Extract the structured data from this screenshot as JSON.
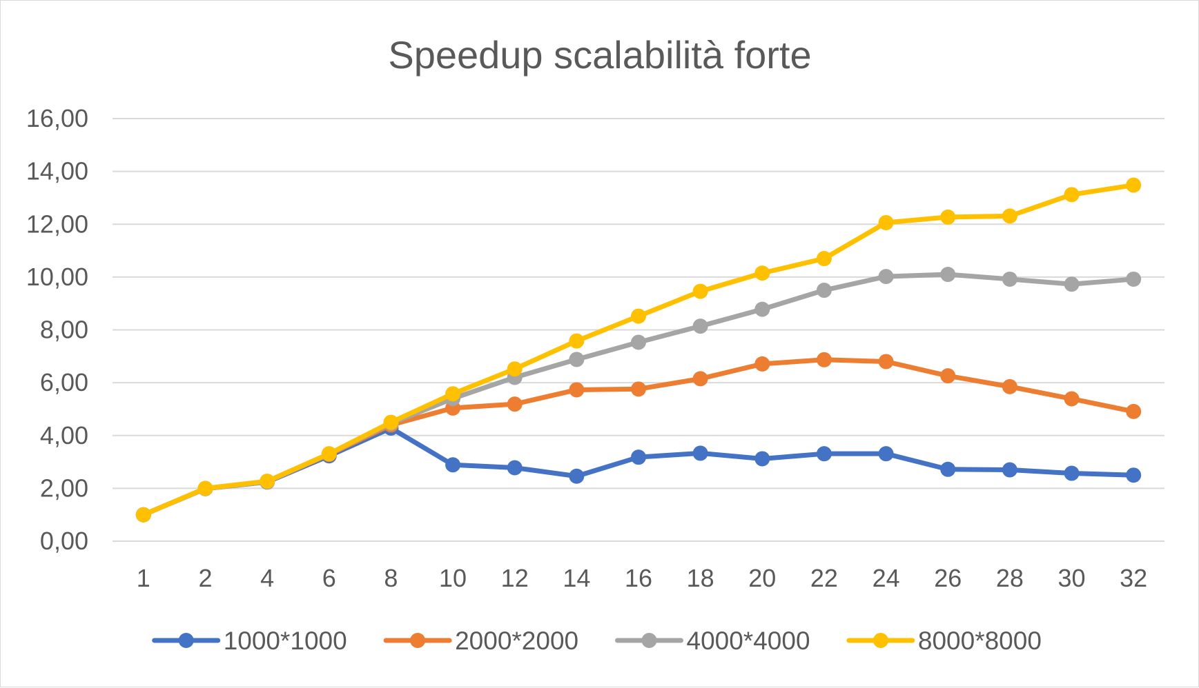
{
  "chart_data": {
    "type": "line",
    "title": "Speedup scalabilità forte",
    "xlabel": "",
    "ylabel": "",
    "categories": [
      "1",
      "2",
      "4",
      "6",
      "8",
      "10",
      "12",
      "14",
      "16",
      "18",
      "20",
      "22",
      "24",
      "26",
      "28",
      "30",
      "32"
    ],
    "ylim": [
      0,
      16
    ],
    "yticks": [
      0,
      2,
      4,
      6,
      8,
      10,
      12,
      14,
      16
    ],
    "ytick_labels": [
      "0,00",
      "2,00",
      "4,00",
      "6,00",
      "8,00",
      "10,00",
      "12,00",
      "14,00",
      "16,00"
    ],
    "grid": true,
    "legend_position": "bottom",
    "series": [
      {
        "name": "1000*1000",
        "color": "#4472C4",
        "values": [
          1.0,
          1.99,
          2.24,
          3.23,
          4.28,
          2.89,
          2.78,
          2.46,
          3.18,
          3.33,
          3.12,
          3.31,
          3.31,
          2.72,
          2.7,
          2.57,
          2.5
        ]
      },
      {
        "name": "2000*2000",
        "color": "#ED7D31",
        "values": [
          1.0,
          1.99,
          2.25,
          3.28,
          4.4,
          5.04,
          5.19,
          5.73,
          5.76,
          6.15,
          6.71,
          6.87,
          6.8,
          6.26,
          5.85,
          5.39,
          4.91
        ]
      },
      {
        "name": "4000*4000",
        "color": "#A5A5A5",
        "values": [
          1.0,
          1.99,
          2.25,
          3.3,
          4.46,
          5.4,
          6.2,
          6.88,
          7.53,
          8.14,
          8.78,
          9.5,
          10.02,
          10.1,
          9.92,
          9.73,
          9.92
        ]
      },
      {
        "name": "8000*8000",
        "color": "#FFC000",
        "values": [
          1.0,
          2.0,
          2.27,
          3.31,
          4.5,
          5.58,
          6.52,
          7.58,
          8.52,
          9.46,
          10.15,
          10.7,
          12.06,
          12.27,
          12.31,
          13.12,
          13.48
        ]
      }
    ]
  }
}
